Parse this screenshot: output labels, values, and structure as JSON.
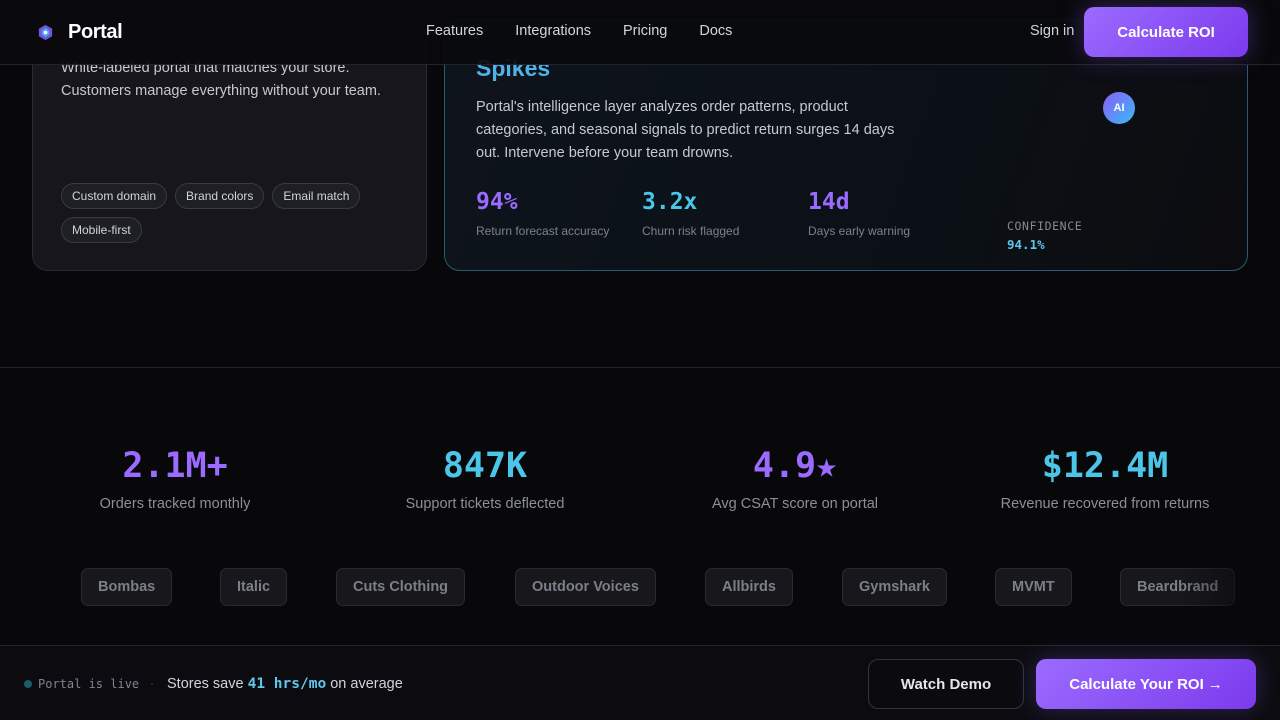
{
  "colors": {
    "accent_purple": "#8b5cf6",
    "accent_cyan": "#22d3ee",
    "background": "#08080b"
  },
  "nav": {
    "logo_icon": "portal-logo-icon",
    "brand": "Portal",
    "links": [
      "Features",
      "Integrations",
      "Pricing",
      "Docs"
    ],
    "sign_in": "Sign in",
    "cta": "Calculate ROI"
  },
  "portal_card": {
    "description": "White-labeled portal that matches your store. Customers manage everything without your team.",
    "tags": [
      "Custom domain",
      "Brand colors",
      "Email match",
      "Mobile-first"
    ]
  },
  "intel_card": {
    "title": "Spikes",
    "description": "Portal's intelligence layer analyzes order patterns, product categories, and seasonal signals to predict return surges 14 days out. Intervene before your team drowns.",
    "metrics": [
      {
        "value": "94%",
        "label": "Return forecast accuracy"
      },
      {
        "value": "3.2x",
        "label": "Churn risk flagged"
      },
      {
        "value": "14d",
        "label": "Days early warning"
      }
    ],
    "ai_badge": "AI",
    "confidence_label": "CONFIDENCE",
    "confidence_value": "94.1%"
  },
  "stats": [
    {
      "value": "2.1M+",
      "label": "Orders tracked monthly"
    },
    {
      "value": "847K",
      "label": "Support tickets deflected"
    },
    {
      "value": "4.9★",
      "label": "Avg CSAT score on portal"
    },
    {
      "value": "$12.4M",
      "label": "Revenue recovered from returns"
    }
  ],
  "logos": [
    "Bombas",
    "Italic",
    "Cuts Clothing",
    "Outdoor Voices",
    "Allbirds",
    "Gymshark",
    "MVMT",
    "Beardbrand"
  ],
  "bottom_bar": {
    "status": "Portal is live",
    "separator": "·",
    "save_prefix": "Stores save",
    "save_highlight": "41 hrs/mo",
    "save_suffix": "on average",
    "watch_demo": "Watch Demo",
    "roi_cta": "Calculate Your ROI",
    "roi_arrow": "→"
  }
}
